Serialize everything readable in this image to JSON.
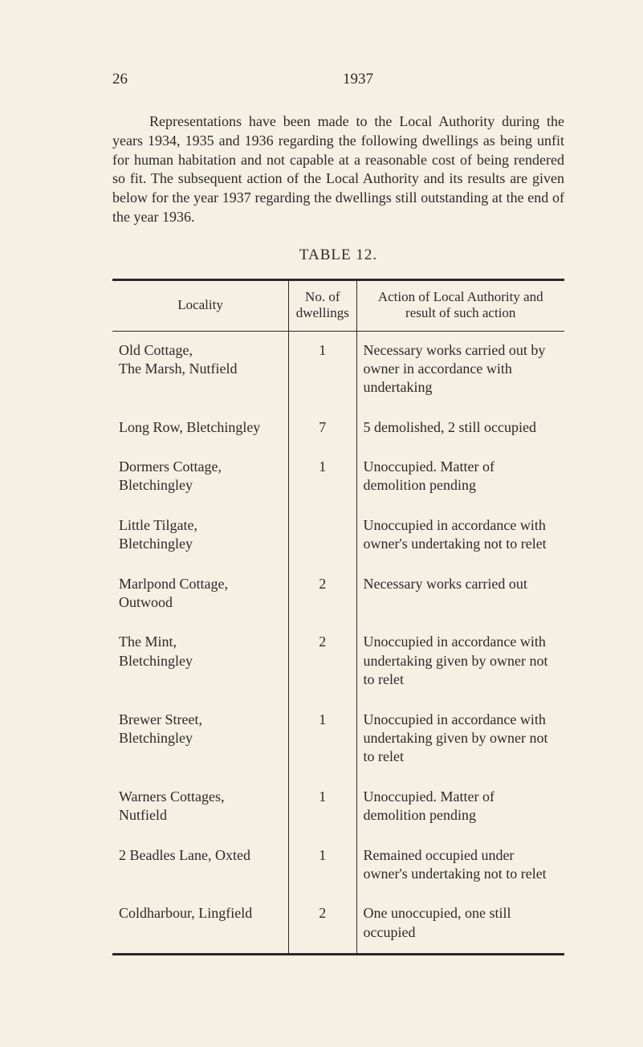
{
  "page": {
    "number": "26",
    "year": "1937"
  },
  "paragraph": "Representations have been made to the Local Authority during the years 1934, 1935 and 1936 regarding the following dwellings as being unfit for human habitation and not capable at a reasonable cost of being rendered so fit. The subsequent action of the Local Authority and its results are given below for the year 1937 regarding the dwellings still outstanding at the end of the year 1936.",
  "table": {
    "title": "TABLE 12.",
    "columns": {
      "locality": "Locality",
      "no": "No. of dwellings",
      "action": "Action of Local Authority and result of such action"
    },
    "rows": [
      {
        "locality": "Old Cottage,\nThe Marsh, Nutfield",
        "no": "1",
        "action": "Necessary works carried out by owner in accordance with undertaking"
      },
      {
        "locality": "Long Row, Bletchingley",
        "no": "7",
        "action": "5 demolished, 2 still occupied"
      },
      {
        "locality": "Dormers Cottage,\nBletchingley",
        "no": "1",
        "action": "Unoccupied.  Matter of demolition pending"
      },
      {
        "locality": "Little Tilgate,\nBletchingley",
        "no": "",
        "action": "Unoccupied in accordance with owner's undertaking not to relet"
      },
      {
        "locality": "Marlpond Cottage,\nOutwood",
        "no": "2",
        "action": "Necessary works carried out"
      },
      {
        "locality": "The Mint,\nBletchingley",
        "no": "2",
        "action": "Unoccupied in accordance with undertaking given by owner not to relet"
      },
      {
        "locality": "Brewer Street,\nBletchingley",
        "no": "1",
        "action": "Unoccupied in accordance with undertaking given by owner not to relet"
      },
      {
        "locality": "Warners Cottages,\nNutfield",
        "no": "1",
        "action": "Unoccupied.  Matter of demolition pending"
      },
      {
        "locality": "2 Beadles Lane, Oxted",
        "no": "1",
        "action": "Remained occupied under owner's undertaking not to relet"
      },
      {
        "locality": "Coldharbour, Lingfield",
        "no": "2",
        "action": "One  unoccupied, one still occupied"
      }
    ],
    "style": {
      "border_color": "#2a2a28",
      "col_widths_pct": [
        39,
        15,
        46
      ],
      "font_size_body": 18,
      "font_size_header": 17
    }
  },
  "colors": {
    "background": "#f5f0e4",
    "text": "#2a2a28"
  }
}
